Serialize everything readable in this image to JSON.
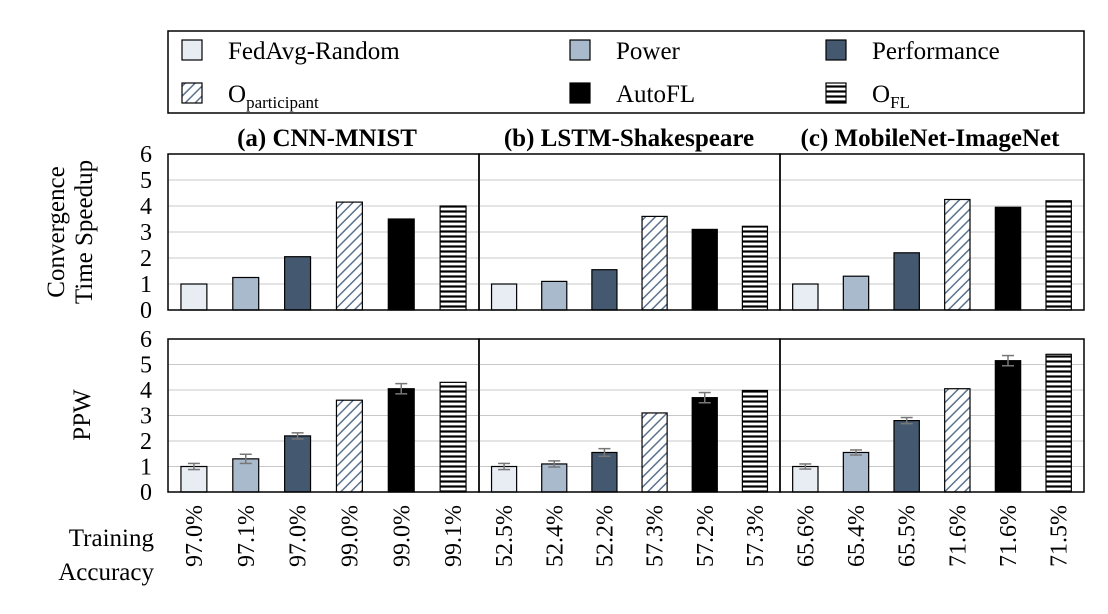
{
  "chart_data": {
    "type": "bar",
    "legend": [
      {
        "key": "fedavg",
        "label": "FedAvg-Random",
        "fill": "#e8edf3"
      },
      {
        "key": "power",
        "label": "Power",
        "fill": "#a9bacd"
      },
      {
        "key": "performance",
        "label": "Performance",
        "fill": "#44596f"
      },
      {
        "key": "oparticipant",
        "label": "O",
        "sub": "participant",
        "fill": "diag-hatch"
      },
      {
        "key": "autofl",
        "label": "AutoFL",
        "fill": "#000000"
      },
      {
        "key": "ofl",
        "label": "O",
        "sub": "FL",
        "fill": "horiz-hatch"
      }
    ],
    "legend_placement": "top",
    "panels": [
      {
        "title": "(a) CNN-MNIST",
        "speedup": [
          1.0,
          1.25,
          2.05,
          4.15,
          3.5,
          4.0
        ],
        "ppw": [
          1.0,
          1.3,
          2.2,
          3.6,
          4.05,
          4.3
        ],
        "ppw_err": [
          0.12,
          0.18,
          0.12,
          0,
          0.2,
          0
        ],
        "accuracy": [
          "97.0%",
          "97.1%",
          "97.0%",
          "99.0%",
          "99.0%",
          "99.1%"
        ]
      },
      {
        "title": "(b) LSTM-Shakespeare",
        "speedup": [
          1.0,
          1.1,
          1.55,
          3.6,
          3.1,
          3.22
        ],
        "ppw": [
          1.0,
          1.1,
          1.55,
          3.1,
          3.7,
          3.98
        ],
        "ppw_err": [
          0.12,
          0.12,
          0.15,
          0,
          0.2,
          0
        ],
        "accuracy": [
          "52.5%",
          "52.4%",
          "52.2%",
          "57.3%",
          "57.2%",
          "57.3%"
        ]
      },
      {
        "title": "(c) MobileNet-ImageNet",
        "speedup": [
          1.0,
          1.3,
          2.2,
          4.25,
          3.95,
          4.2
        ],
        "ppw": [
          1.0,
          1.55,
          2.8,
          4.05,
          5.15,
          5.4
        ],
        "ppw_err": [
          0.1,
          0.1,
          0.12,
          0,
          0.2,
          0
        ],
        "accuracy": [
          "65.6%",
          "65.4%",
          "65.5%",
          "71.6%",
          "71.6%",
          "71.5%"
        ]
      }
    ],
    "rows": [
      {
        "key": "speedup",
        "ylabel_lines": [
          "Convergence",
          "Time Speedup"
        ],
        "ylim": [
          0,
          6
        ],
        "yticks": [
          "0",
          "1",
          "2",
          "3",
          "4",
          "5",
          "6"
        ]
      },
      {
        "key": "ppw",
        "ylabel_lines": [
          "PPW"
        ],
        "ylim": [
          0,
          6
        ],
        "yticks": [
          "0",
          "1",
          "2",
          "3",
          "4",
          "5",
          "6"
        ]
      }
    ],
    "accuracy_label_lines": [
      "Training",
      "Accuracy"
    ],
    "grid": true
  }
}
